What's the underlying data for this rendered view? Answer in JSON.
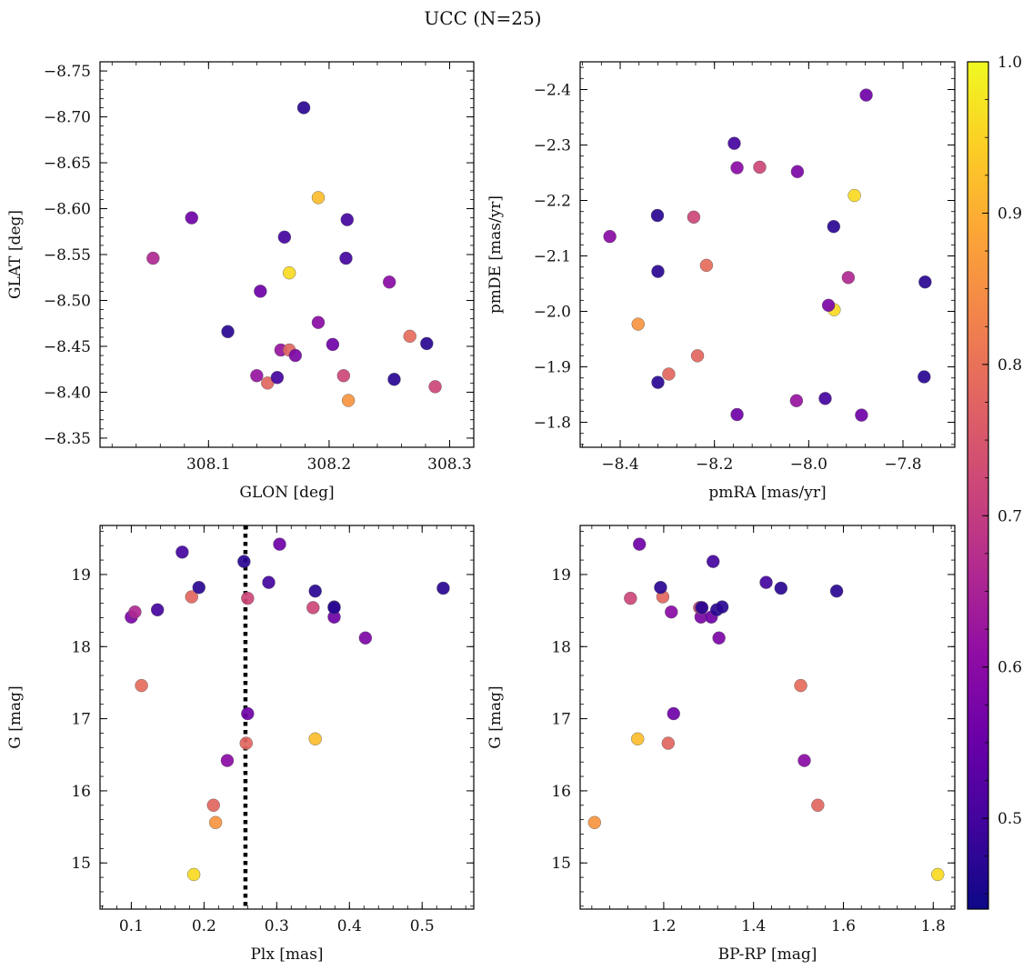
{
  "figure": {
    "title": "UCC (N=25)",
    "colorbar": {
      "min": 0.44,
      "max": 1.0,
      "ticks": [
        0.5,
        0.6,
        0.7,
        0.8,
        0.9,
        1.0
      ],
      "tick_labels": [
        "0.5",
        "0.6",
        "0.7",
        "0.8",
        "0.9",
        "1.0"
      ],
      "colormap": "plasma"
    }
  },
  "chart_data": [
    {
      "type": "scatter",
      "id": "glon-glat",
      "xlabel": "GLON [deg]",
      "ylabel": "GLAT [deg]",
      "xlim": [
        308.01,
        308.32
      ],
      "ylim": [
        -8.76,
        -8.34
      ],
      "xticks": [
        308.1,
        308.2,
        308.3
      ],
      "xtick_labels": [
        "308.1",
        "308.2",
        "308.3"
      ],
      "yticks": [
        -8.35,
        -8.4,
        -8.45,
        -8.5,
        -8.55,
        -8.6,
        -8.65,
        -8.7,
        -8.75
      ],
      "ytick_labels": [
        "−8.35",
        "−8.40",
        "−8.45",
        "−8.50",
        "−8.55",
        "−8.60",
        "−8.65",
        "−8.70",
        "−8.75"
      ],
      "x": [
        308.216,
        308.149,
        308.14,
        308.157,
        308.16,
        308.167,
        308.172,
        308.212,
        308.288,
        308.254,
        308.116,
        308.203,
        308.281,
        308.267,
        308.191,
        308.143,
        308.25,
        308.167,
        308.054,
        308.214,
        308.163,
        308.086,
        308.215,
        308.191,
        308.179
      ],
      "y": [
        -8.391,
        -8.41,
        -8.418,
        -8.416,
        -8.446,
        -8.446,
        -8.44,
        -8.418,
        -8.406,
        -8.414,
        -8.466,
        -8.452,
        -8.453,
        -8.461,
        -8.476,
        -8.51,
        -8.52,
        -8.53,
        -8.546,
        -8.546,
        -8.569,
        -8.59,
        -8.588,
        -8.612,
        -8.71
      ],
      "c": [
        0.86,
        0.78,
        0.62,
        0.5,
        0.62,
        0.78,
        0.58,
        0.72,
        0.72,
        0.47,
        0.47,
        0.56,
        0.47,
        0.79,
        0.6,
        0.56,
        0.6,
        0.96,
        0.66,
        0.5,
        0.5,
        0.56,
        0.5,
        0.92,
        0.47
      ]
    },
    {
      "type": "scatter",
      "id": "pmra-pmde",
      "xlabel": "pmRA [mas/yr]",
      "ylabel": "pmDE [mas/yr]",
      "xlim": [
        -8.485,
        -7.69
      ],
      "ylim": [
        -2.45,
        -1.755
      ],
      "xticks": [
        -8.4,
        -8.2,
        -8.0,
        -7.8
      ],
      "xtick_labels": [
        "−8.4",
        "−8.2",
        "−8.0",
        "−7.8"
      ],
      "yticks": [
        -1.8,
        -1.9,
        -2.0,
        -2.1,
        -2.2,
        -2.3,
        -2.4
      ],
      "ytick_labels": [
        "−1.8",
        "−1.9",
        "−2.0",
        "−2.1",
        "−2.2",
        "−2.3",
        "−2.4"
      ],
      "x": [
        -8.152,
        -7.888,
        -8.026,
        -7.965,
        -8.32,
        -8.297,
        -7.755,
        -8.236,
        -8.362,
        -7.946,
        -7.958,
        -8.32,
        -7.753,
        -7.916,
        -8.217,
        -8.422,
        -7.947,
        -8.321,
        -8.244,
        -7.903,
        -8.152,
        -8.104,
        -8.024,
        -8.158,
        -7.878
      ],
      "y": [
        -1.814,
        -1.813,
        -1.839,
        -1.843,
        -1.872,
        -1.887,
        -1.882,
        -1.92,
        -1.977,
        -2.003,
        -2.011,
        -2.072,
        -2.053,
        -2.061,
        -2.083,
        -2.135,
        -2.153,
        -2.173,
        -2.17,
        -2.209,
        -2.259,
        -2.26,
        -2.252,
        -2.303,
        -2.39
      ],
      "c": [
        0.56,
        0.56,
        0.62,
        0.5,
        0.47,
        0.78,
        0.47,
        0.78,
        0.86,
        0.96,
        0.58,
        0.47,
        0.47,
        0.66,
        0.79,
        0.6,
        0.47,
        0.47,
        0.72,
        0.96,
        0.6,
        0.72,
        0.58,
        0.5,
        0.56
      ]
    },
    {
      "type": "scatter",
      "id": "plx-g",
      "xlabel": "Plx [mas]",
      "ylabel": "G [mag]",
      "xlim": [
        0.057,
        0.571
      ],
      "ylim": [
        19.68,
        14.36
      ],
      "xticks": [
        0.1,
        0.2,
        0.3,
        0.4,
        0.5
      ],
      "xtick_labels": [
        "0.1",
        "0.2",
        "0.3",
        "0.4",
        "0.5"
      ],
      "yticks": [
        15,
        16,
        17,
        18,
        19
      ],
      "ytick_labels": [
        "15",
        "16",
        "17",
        "18",
        "19"
      ],
      "vline": 0.257,
      "x": [
        0.186,
        0.216,
        0.213,
        0.232,
        0.258,
        0.353,
        0.26,
        0.114,
        0.422,
        0.1,
        0.105,
        0.136,
        0.35,
        0.379,
        0.379,
        0.183,
        0.26,
        0.193,
        0.353,
        0.529,
        0.289,
        0.255,
        0.17,
        0.304,
        0.379
      ],
      "y": [
        14.84,
        15.56,
        15.8,
        16.42,
        16.66,
        16.72,
        17.07,
        17.46,
        18.12,
        18.41,
        18.48,
        18.51,
        18.54,
        18.41,
        18.55,
        18.69,
        18.67,
        18.82,
        18.77,
        18.81,
        18.89,
        19.18,
        19.31,
        19.42,
        18.54
      ],
      "c": [
        0.96,
        0.86,
        0.78,
        0.6,
        0.78,
        0.92,
        0.56,
        0.79,
        0.58,
        0.58,
        0.66,
        0.5,
        0.72,
        0.56,
        0.47,
        0.78,
        0.72,
        0.47,
        0.47,
        0.47,
        0.5,
        0.47,
        0.5,
        0.56,
        0.47
      ]
    },
    {
      "type": "scatter",
      "id": "bprp-g",
      "xlabel": "BP-RP [mag]",
      "ylabel": "G [mag]",
      "xlim": [
        1.014,
        1.848
      ],
      "ylim": [
        19.68,
        14.36
      ],
      "xticks": [
        1.2,
        1.4,
        1.6,
        1.8
      ],
      "xtick_labels": [
        "1.2",
        "1.4",
        "1.6",
        "1.8"
      ],
      "yticks": [
        15,
        16,
        17,
        18,
        19
      ],
      "ytick_labels": [
        "15",
        "16",
        "17",
        "18",
        "19"
      ],
      "x": [
        1.81,
        1.046,
        1.543,
        1.513,
        1.21,
        1.142,
        1.222,
        1.505,
        1.323,
        1.283,
        1.306,
        1.217,
        1.28,
        1.284,
        1.318,
        1.33,
        1.198,
        1.126,
        1.193,
        1.461,
        1.585,
        1.428,
        1.31,
        1.146,
        1.285
      ],
      "y": [
        14.84,
        15.56,
        15.8,
        16.42,
        16.66,
        16.72,
        17.07,
        17.46,
        18.12,
        18.41,
        18.41,
        18.48,
        18.54,
        18.54,
        18.51,
        18.55,
        18.69,
        18.67,
        18.82,
        18.81,
        18.77,
        18.89,
        19.18,
        19.42,
        18.54
      ],
      "c": [
        0.96,
        0.86,
        0.78,
        0.6,
        0.78,
        0.92,
        0.56,
        0.79,
        0.58,
        0.58,
        0.56,
        0.6,
        0.72,
        0.66,
        0.47,
        0.47,
        0.78,
        0.72,
        0.47,
        0.47,
        0.47,
        0.5,
        0.5,
        0.56,
        0.47
      ]
    }
  ]
}
